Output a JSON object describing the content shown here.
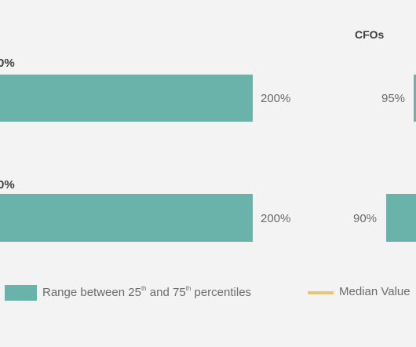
{
  "chart_data": {
    "type": "bar",
    "panels": [
      {
        "title": "",
        "rows": [
          {
            "median_label": "0%",
            "value_label": "200%"
          },
          {
            "median_label": "0%",
            "value_label": "200%"
          }
        ]
      },
      {
        "title": "CFOs",
        "rows": [
          {
            "value_label": "95%"
          },
          {
            "value_label": "90%"
          }
        ]
      }
    ],
    "legend": {
      "range": {
        "text": "Range between 25",
        "sup1": "th",
        "mid": " and 75",
        "sup2": "th",
        "tail": " percentiles",
        "color": "#6ab3ab"
      },
      "median": {
        "text": "Median Value",
        "color": "#e9c57a"
      }
    }
  }
}
